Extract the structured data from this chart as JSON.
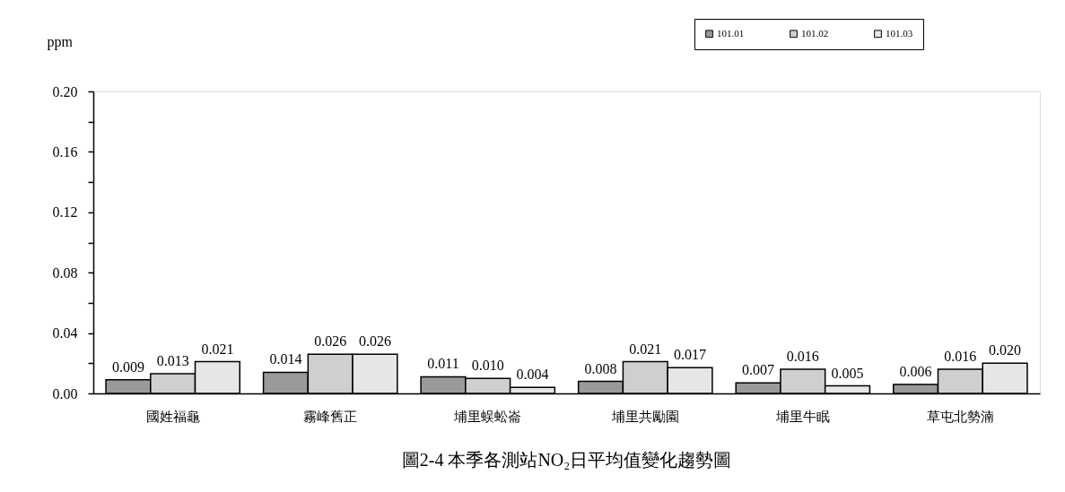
{
  "chart_data": {
    "type": "bar",
    "title": "圖2-4 本季各測站NO₂日平均值變化趨勢圖",
    "ylabel": "ppm",
    "categories": [
      "國姓福龜",
      "霧峰舊正",
      "埔里蜈蚣崙",
      "埔里共勵園",
      "埔里牛眠",
      "草屯北勢湳"
    ],
    "series": [
      {
        "name": "101.01",
        "color": "#9a9a9a",
        "values": [
          0.009,
          0.014,
          0.011,
          0.008,
          0.007,
          0.006
        ],
        "value_labels": [
          "0.009",
          "0.014",
          "0.011",
          "0.008",
          "0.007",
          "0.006"
        ]
      },
      {
        "name": "101.02",
        "color": "#cfcfcf",
        "values": [
          0.013,
          0.026,
          0.01,
          0.021,
          0.016,
          0.016
        ],
        "value_labels": [
          "0.013",
          "0.026",
          "0.010",
          "0.021",
          "0.016",
          "0.016"
        ]
      },
      {
        "name": "101.03",
        "color": "#e6e6e6",
        "values": [
          0.021,
          0.026,
          0.004,
          0.017,
          0.005,
          0.02
        ],
        "value_labels": [
          "0.021",
          "0.026",
          "0.004",
          "0.017",
          "0.005",
          "0.020"
        ]
      }
    ],
    "ylim": [
      0,
      0.2
    ],
    "yticks": [
      {
        "value": 0,
        "label": "0.00"
      },
      {
        "value": 0.02,
        "label": null
      },
      {
        "value": 0.04,
        "label": "0.04"
      },
      {
        "value": 0.06,
        "label": null
      },
      {
        "value": 0.08,
        "label": "0.08"
      },
      {
        "value": 0.1,
        "label": null
      },
      {
        "value": 0.12,
        "label": "0.12"
      },
      {
        "value": 0.14,
        "label": null
      },
      {
        "value": 0.16,
        "label": "0.16"
      },
      {
        "value": 0.18,
        "label": null
      },
      {
        "value": 0.2,
        "label": "0.20"
      }
    ],
    "legend": "top right"
  }
}
